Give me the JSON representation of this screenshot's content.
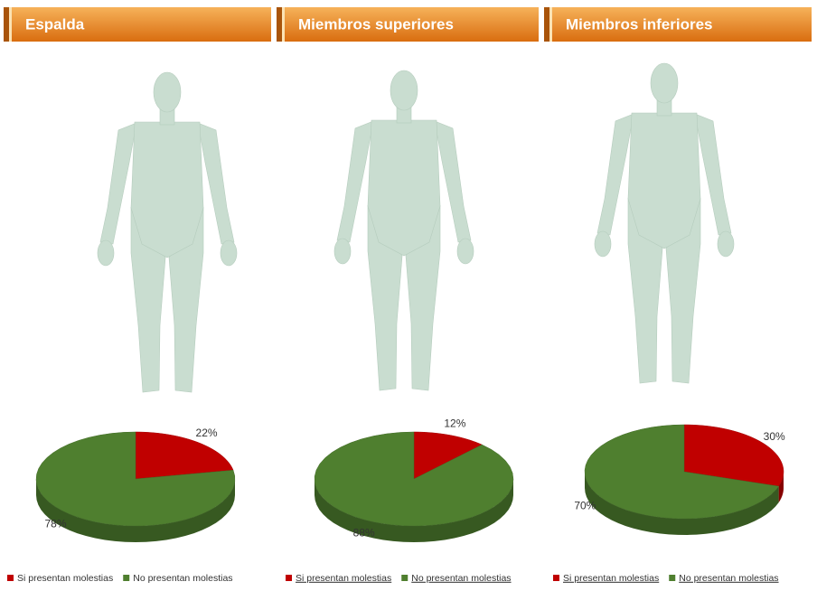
{
  "chart_data": [
    {
      "type": "pie",
      "title": "Espalda",
      "categories": [
        "Si presentan molestias",
        "No presentan molestias"
      ],
      "values": [
        22,
        78
      ],
      "value_labels": [
        "22%",
        "78%"
      ],
      "colors": [
        "#c00000",
        "#4f7f2f"
      ]
    },
    {
      "type": "pie",
      "title": "Miembros superiores",
      "categories": [
        "Si presentan molestias",
        "No presentan molestias"
      ],
      "values": [
        12,
        88
      ],
      "value_labels": [
        "12%",
        "88%"
      ],
      "colors": [
        "#c00000",
        "#4f7f2f"
      ]
    },
    {
      "type": "pie",
      "title": "Miembros inferiores",
      "categories": [
        "Si presentan molestias",
        "No presentan molestias"
      ],
      "values": [
        30,
        70
      ],
      "value_labels": [
        "30%",
        "70%"
      ],
      "colors": [
        "#c00000",
        "#4f7f2f"
      ]
    }
  ]
}
